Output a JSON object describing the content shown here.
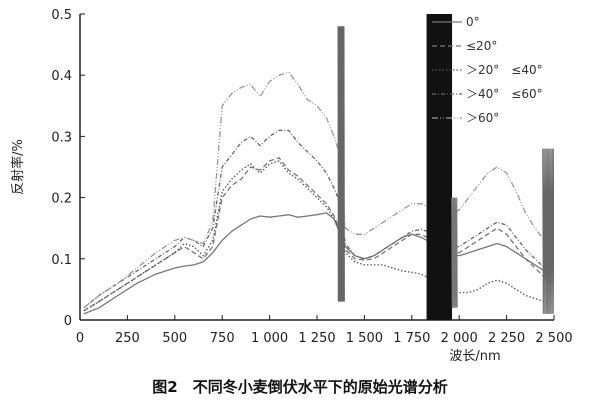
{
  "chart_data": {
    "type": "line",
    "title": "",
    "caption": "图2　不同冬小麦倒伏水平下的原始光谱分析",
    "xlabel": "波长/nm",
    "ylabel": "反射率/%",
    "xlim": [
      0,
      2500
    ],
    "ylim": [
      0,
      0.5
    ],
    "x_ticks": [
      0,
      250,
      500,
      750,
      1000,
      1250,
      1500,
      1750,
      2000,
      2250,
      2500
    ],
    "x_tick_labels": [
      "0",
      "250",
      "500",
      "750",
      "1 000",
      "1 250",
      "1 500",
      "1 750",
      "2 000",
      "2 250",
      "2 500"
    ],
    "y_ticks": [
      0,
      0.1,
      0.2,
      0.3,
      0.4,
      0.5
    ],
    "y_tick_labels": [
      "0",
      "0.1",
      "0.2",
      "0.3",
      "0.4",
      "0.5"
    ],
    "grid": false,
    "legend_position": "top-right",
    "series": [
      {
        "name": "0°",
        "dash": "",
        "color": "#777777",
        "x": [
          20,
          100,
          200,
          300,
          400,
          500,
          550,
          600,
          650,
          700,
          750,
          800,
          850,
          900,
          950,
          1000,
          1050,
          1100,
          1150,
          1200,
          1250,
          1300,
          1340,
          1360,
          1400,
          1450,
          1500,
          1550,
          1600,
          1650,
          1700,
          1750,
          1800,
          1830,
          1950,
          2000,
          2050,
          2100,
          2150,
          2200,
          2250,
          2300,
          2350,
          2400,
          2450,
          2480
        ],
        "y": [
          0.01,
          0.02,
          0.04,
          0.06,
          0.075,
          0.085,
          0.088,
          0.09,
          0.095,
          0.11,
          0.13,
          0.145,
          0.155,
          0.165,
          0.17,
          0.168,
          0.17,
          0.172,
          0.168,
          0.17,
          0.172,
          0.175,
          0.165,
          0.15,
          0.12,
          0.105,
          0.1,
          0.105,
          0.115,
          0.125,
          0.135,
          0.14,
          0.135,
          0.13,
          0.11,
          0.105,
          0.11,
          0.115,
          0.12,
          0.125,
          0.12,
          0.11,
          0.1,
          0.09,
          0.08,
          0.075
        ]
      },
      {
        "name": "≤20°",
        "dash": "5,3",
        "color": "#777777",
        "x": [
          20,
          100,
          200,
          300,
          400,
          500,
          550,
          600,
          650,
          700,
          750,
          800,
          850,
          900,
          950,
          1000,
          1050,
          1100,
          1150,
          1200,
          1250,
          1300,
          1340,
          1360,
          1400,
          1450,
          1500,
          1550,
          1600,
          1650,
          1700,
          1750,
          1800,
          1830,
          1950,
          2000,
          2050,
          2100,
          2150,
          2200,
          2250,
          2300,
          2350,
          2400,
          2450,
          2480
        ],
        "y": [
          0.015,
          0.03,
          0.05,
          0.07,
          0.09,
          0.11,
          0.12,
          0.11,
          0.1,
          0.12,
          0.2,
          0.22,
          0.23,
          0.25,
          0.245,
          0.26,
          0.265,
          0.245,
          0.235,
          0.22,
          0.205,
          0.19,
          0.17,
          0.155,
          0.115,
          0.1,
          0.098,
          0.1,
          0.11,
          0.12,
          0.13,
          0.14,
          0.14,
          0.135,
          0.11,
          0.11,
          0.12,
          0.13,
          0.14,
          0.15,
          0.14,
          0.12,
          0.1,
          0.085,
          0.07,
          0.06
        ]
      },
      {
        "name": "＞20°　≤40°",
        "dash": "1.5,2",
        "color": "#555555",
        "x": [
          20,
          100,
          200,
          300,
          400,
          500,
          550,
          600,
          650,
          700,
          750,
          800,
          850,
          900,
          950,
          1000,
          1050,
          1100,
          1150,
          1200,
          1250,
          1300,
          1340,
          1360,
          1400,
          1450,
          1500,
          1550,
          1600,
          1650,
          1700,
          1750,
          1800,
          1830,
          1950,
          2000,
          2050,
          2100,
          2150,
          2200,
          2250,
          2300,
          2350,
          2400,
          2450,
          2480
        ],
        "y": [
          0.015,
          0.03,
          0.05,
          0.07,
          0.09,
          0.11,
          0.125,
          0.12,
          0.105,
          0.13,
          0.21,
          0.23,
          0.245,
          0.255,
          0.24,
          0.255,
          0.26,
          0.24,
          0.23,
          0.215,
          0.2,
          0.185,
          0.165,
          0.15,
          0.11,
          0.095,
          0.09,
          0.09,
          0.09,
          0.085,
          0.08,
          0.078,
          0.075,
          0.07,
          0.05,
          0.045,
          0.045,
          0.05,
          0.06,
          0.065,
          0.06,
          0.05,
          0.04,
          0.035,
          0.03,
          0.028
        ]
      },
      {
        "name": "＞40°　≤60°",
        "dash": "4,2,1,2",
        "color": "#666666",
        "x": [
          20,
          100,
          200,
          300,
          400,
          500,
          550,
          600,
          650,
          700,
          750,
          800,
          850,
          900,
          950,
          1000,
          1050,
          1100,
          1150,
          1200,
          1250,
          1300,
          1340,
          1360,
          1400,
          1450,
          1500,
          1550,
          1600,
          1650,
          1700,
          1750,
          1800,
          1830,
          1950,
          2000,
          2050,
          2100,
          2150,
          2200,
          2250,
          2300,
          2350,
          2400,
          2450,
          2480
        ],
        "y": [
          0.02,
          0.04,
          0.06,
          0.08,
          0.1,
          0.12,
          0.135,
          0.13,
          0.12,
          0.15,
          0.25,
          0.27,
          0.29,
          0.3,
          0.285,
          0.3,
          0.31,
          0.31,
          0.29,
          0.275,
          0.26,
          0.24,
          0.215,
          0.2,
          0.125,
          0.105,
          0.1,
          0.105,
          0.115,
          0.125,
          0.135,
          0.145,
          0.148,
          0.145,
          0.12,
          0.12,
          0.13,
          0.14,
          0.15,
          0.16,
          0.155,
          0.135,
          0.115,
          0.1,
          0.085,
          0.075
        ]
      },
      {
        "name": "＞60°",
        "dash": "6,2,1,2,1,2",
        "color": "#999999",
        "x": [
          20,
          100,
          200,
          300,
          400,
          500,
          550,
          600,
          650,
          700,
          750,
          800,
          850,
          900,
          950,
          1000,
          1050,
          1100,
          1150,
          1200,
          1250,
          1300,
          1340,
          1360,
          1400,
          1450,
          1500,
          1550,
          1600,
          1650,
          1700,
          1750,
          1800,
          1830,
          1950,
          2000,
          2050,
          2100,
          2150,
          2200,
          2250,
          2300,
          2350,
          2400,
          2450,
          2480
        ],
        "y": [
          0.02,
          0.04,
          0.06,
          0.085,
          0.11,
          0.13,
          0.135,
          0.13,
          0.125,
          0.16,
          0.35,
          0.37,
          0.38,
          0.385,
          0.365,
          0.39,
          0.4,
          0.405,
          0.385,
          0.36,
          0.35,
          0.33,
          0.3,
          0.28,
          0.15,
          0.14,
          0.14,
          0.15,
          0.16,
          0.17,
          0.18,
          0.19,
          0.19,
          0.185,
          0.17,
          0.18,
          0.2,
          0.22,
          0.24,
          0.25,
          0.24,
          0.21,
          0.175,
          0.15,
          0.13,
          0.12
        ]
      }
    ]
  }
}
